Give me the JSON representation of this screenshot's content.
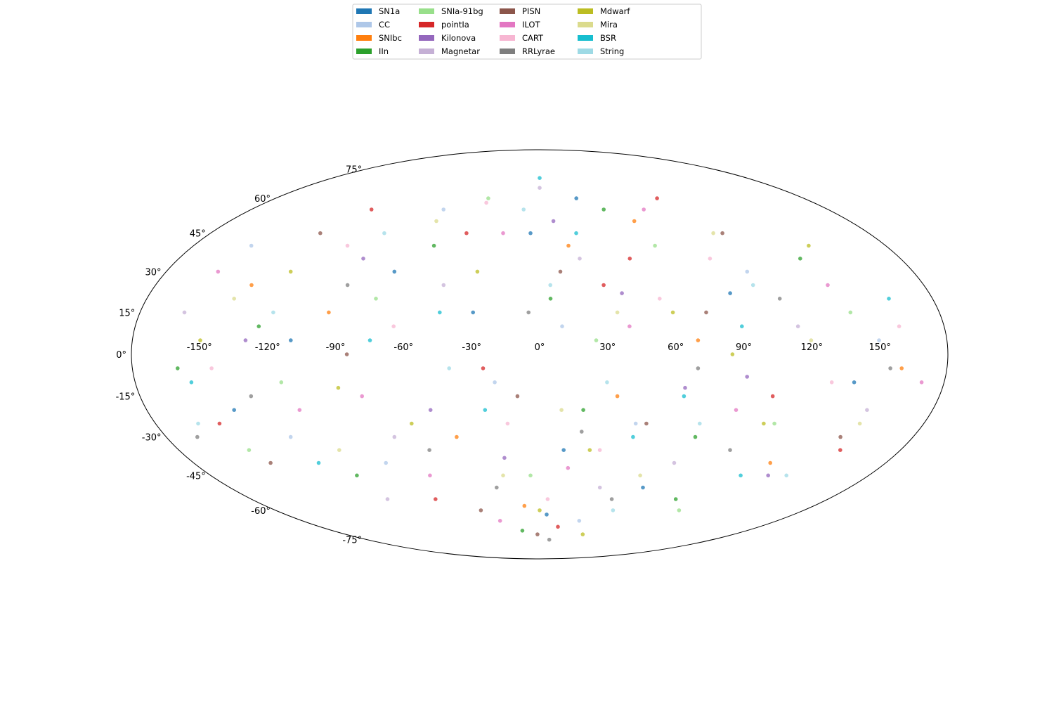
{
  "chart_data": {
    "type": "scatter",
    "projection": "mollweide",
    "title": "",
    "xlabel": "",
    "ylabel": "",
    "grid": false,
    "legend": "top-center",
    "xlim": [
      -180,
      180
    ],
    "ylim": [
      -90,
      90
    ],
    "x_tick_labels": [
      "-150°",
      "-120°",
      "-90°",
      "-60°",
      "-30°",
      "0°",
      "30°",
      "60°",
      "90°",
      "120°",
      "150°"
    ],
    "x_tick_values": [
      -150,
      -120,
      -90,
      -60,
      -30,
      0,
      30,
      60,
      90,
      120,
      150
    ],
    "y_tick_labels": [
      "-75°",
      "-60°",
      "-45°",
      "-30°",
      "-15°",
      "0°",
      "15°",
      "30°",
      "45°",
      "60°",
      "75°"
    ],
    "y_tick_values": [
      -75,
      -60,
      -45,
      -30,
      -15,
      0,
      15,
      30,
      45,
      60,
      75
    ],
    "series": [
      {
        "name": "SN1a",
        "color": "#1f77b4",
        "points": [
          [
            -5,
            45
          ],
          [
            12,
            -35
          ],
          [
            88,
            22
          ],
          [
            -140,
            -20
          ],
          [
            60,
            -50
          ],
          [
            -70,
            30
          ],
          [
            25,
            60
          ],
          [
            -110,
            5
          ],
          [
            140,
            -10
          ],
          [
            -30,
            15
          ],
          [
            5,
            -62
          ]
        ]
      },
      {
        "name": "CC",
        "color": "#aec7e8",
        "points": [
          [
            -150,
            40
          ],
          [
            -20,
            -10
          ],
          [
            45,
            -25
          ],
          [
            100,
            30
          ],
          [
            -80,
            -40
          ],
          [
            10,
            10
          ],
          [
            -60,
            55
          ],
          [
            150,
            5
          ],
          [
            30,
            -65
          ],
          [
            -120,
            -30
          ]
        ]
      },
      {
        "name": "SNIbc",
        "color": "#ff7f0e",
        "points": [
          [
            -95,
            15
          ],
          [
            35,
            -15
          ],
          [
            120,
            -40
          ],
          [
            -40,
            -30
          ],
          [
            15,
            40
          ],
          [
            70,
            5
          ],
          [
            -135,
            25
          ],
          [
            -10,
            -58
          ],
          [
            55,
            50
          ],
          [
            160,
            -5
          ]
        ]
      },
      {
        "name": "IIn",
        "color": "#2ca02c",
        "points": [
          [
            -125,
            10
          ],
          [
            -55,
            40
          ],
          [
            20,
            -20
          ],
          [
            85,
            -55
          ],
          [
            130,
            35
          ],
          [
            -15,
            -70
          ],
          [
            40,
            55
          ],
          [
            -100,
            -45
          ],
          [
            5,
            20
          ],
          [
            75,
            -30
          ],
          [
            -160,
            -5
          ]
        ]
      },
      {
        "name": "SNIa-91bg",
        "color": "#98df8a",
        "points": [
          [
            -145,
            -35
          ],
          [
            -35,
            60
          ],
          [
            25,
            5
          ],
          [
            95,
            -60
          ],
          [
            -75,
            20
          ],
          [
            140,
            15
          ],
          [
            -5,
            -45
          ],
          [
            60,
            40
          ],
          [
            -115,
            -10
          ],
          [
            110,
            -25
          ]
        ]
      },
      {
        "name": "pointIa",
        "color": "#d62728",
        "points": [
          [
            -105,
            55
          ],
          [
            -25,
            -5
          ],
          [
            45,
            35
          ],
          [
            105,
            -15
          ],
          [
            -65,
            -55
          ],
          [
            15,
            -68
          ],
          [
            80,
            60
          ],
          [
            -150,
            -25
          ],
          [
            150,
            -35
          ],
          [
            -40,
            45
          ],
          [
            30,
            25
          ]
        ]
      },
      {
        "name": "Kilonova",
        "color": "#9467bd",
        "points": [
          [
            -130,
            5
          ],
          [
            -50,
            -20
          ],
          [
            38,
            22
          ],
          [
            92,
            -8
          ],
          [
            -88,
            35
          ],
          [
            8,
            50
          ],
          [
            125,
            -45
          ],
          [
            -18,
            -38
          ],
          [
            65,
            -12
          ]
        ]
      },
      {
        "name": "Magnetar",
        "color": "#c5b0d5",
        "points": [
          [
            -160,
            15
          ],
          [
            -70,
            -30
          ],
          [
            0,
            65
          ],
          [
            70,
            -40
          ],
          [
            115,
            10
          ],
          [
            -45,
            25
          ],
          [
            35,
            -50
          ],
          [
            -95,
            -55
          ],
          [
            150,
            -20
          ],
          [
            20,
            35
          ]
        ]
      },
      {
        "name": "PISN",
        "color": "#8c564b",
        "points": [
          [
            -120,
            45
          ],
          [
            -40,
            -60
          ],
          [
            10,
            30
          ],
          [
            50,
            -25
          ],
          [
            100,
            45
          ],
          [
            -85,
            0
          ],
          [
            145,
            -30
          ],
          [
            -10,
            -15
          ],
          [
            75,
            15
          ],
          [
            -140,
            -40
          ],
          [
            -2,
            -72
          ]
        ]
      },
      {
        "name": "ILOT",
        "color": "#e377c2",
        "points": [
          [
            -155,
            30
          ],
          [
            -80,
            -15
          ],
          [
            -20,
            45
          ],
          [
            40,
            10
          ],
          [
            90,
            -20
          ],
          [
            135,
            25
          ],
          [
            -60,
            -45
          ],
          [
            15,
            -42
          ],
          [
            65,
            55
          ],
          [
            -110,
            -20
          ],
          [
            -30,
            -65
          ],
          [
            170,
            -10
          ]
        ]
      },
      {
        "name": "CART",
        "color": "#f7b6d2",
        "points": [
          [
            -145,
            -5
          ],
          [
            -65,
            10
          ],
          [
            -15,
            -25
          ],
          [
            30,
            -35
          ],
          [
            85,
            35
          ],
          [
            130,
            -10
          ],
          [
            -100,
            40
          ],
          [
            5,
            -55
          ],
          [
            55,
            20
          ],
          [
            -35,
            58
          ],
          [
            160,
            10
          ]
        ]
      },
      {
        "name": "RRLyrae",
        "color": "#7f7f7f",
        "points": [
          [
            -130,
            -15
          ],
          [
            -55,
            -35
          ],
          [
            -5,
            15
          ],
          [
            45,
            -55
          ],
          [
            95,
            -35
          ],
          [
            155,
            -5
          ],
          [
            -90,
            25
          ],
          [
            20,
            -28
          ],
          [
            70,
            -5
          ],
          [
            -25,
            -50
          ],
          [
            110,
            20
          ],
          [
            -165,
            -30
          ],
          [
            10,
            -75
          ]
        ]
      },
      {
        "name": "Mdwarf",
        "color": "#bcbd22",
        "points": [
          [
            -150,
            5
          ],
          [
            -90,
            -12
          ],
          [
            -30,
            30
          ],
          [
            25,
            -35
          ],
          [
            60,
            15
          ],
          [
            105,
            -25
          ],
          [
            -120,
            30
          ],
          [
            0,
            -60
          ],
          [
            85,
            0
          ],
          [
            -60,
            -25
          ],
          [
            40,
            -72
          ],
          [
            140,
            40
          ]
        ]
      },
      {
        "name": "Mira",
        "color": "#dbdb8d",
        "points": [
          [
            -140,
            20
          ],
          [
            -60,
            50
          ],
          [
            10,
            -20
          ],
          [
            55,
            -45
          ],
          [
            120,
            5
          ],
          [
            -100,
            -35
          ],
          [
            35,
            15
          ],
          [
            -20,
            -45
          ],
          [
            95,
            45
          ],
          [
            150,
            -25
          ]
        ]
      },
      {
        "name": "BSR",
        "color": "#17becf",
        "points": [
          [
            -155,
            -10
          ],
          [
            -75,
            5
          ],
          [
            -25,
            -20
          ],
          [
            20,
            45
          ],
          [
            65,
            -15
          ],
          [
            110,
            -45
          ],
          [
            -115,
            -40
          ],
          [
            0,
            70
          ],
          [
            45,
            -30
          ],
          [
            90,
            10
          ],
          [
            -45,
            15
          ],
          [
            160,
            20
          ]
        ]
      },
      {
        "name": "String",
        "color": "#9edae5",
        "points": [
          [
            -160,
            -25
          ],
          [
            -85,
            45
          ],
          [
            -40,
            -5
          ],
          [
            5,
            25
          ],
          [
            50,
            -60
          ],
          [
            100,
            25
          ],
          [
            -120,
            15
          ],
          [
            30,
            -10
          ],
          [
            75,
            -25
          ],
          [
            135,
            -45
          ],
          [
            -10,
            55
          ]
        ]
      }
    ]
  }
}
